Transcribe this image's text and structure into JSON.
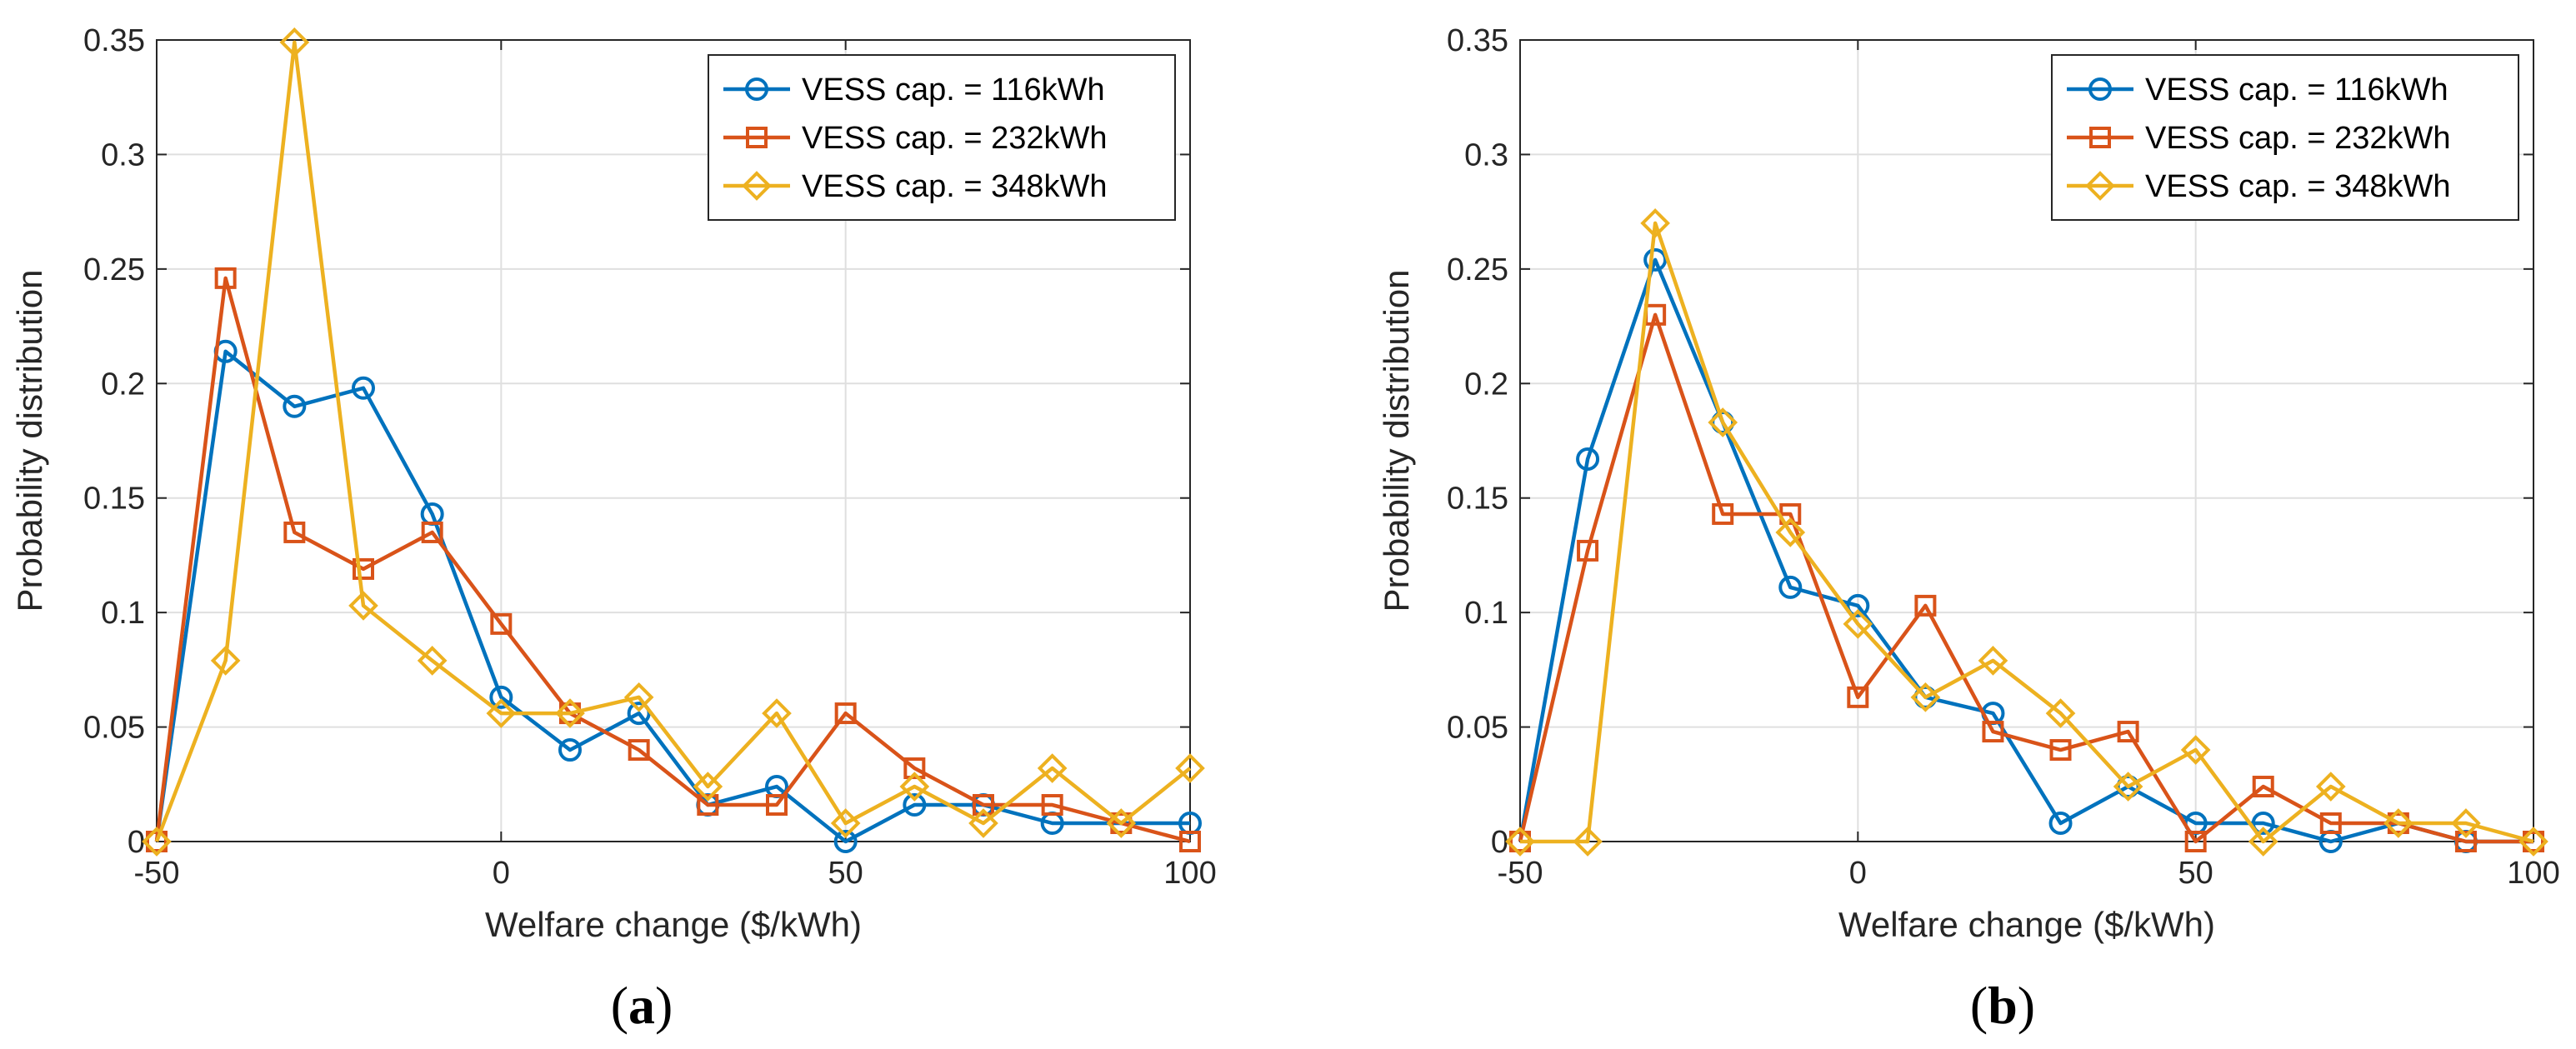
{
  "chart_data": [
    {
      "type": "line",
      "panel_label": "a",
      "title": "",
      "xlabel": "Welfare change ($/kWh)",
      "ylabel": "Probability distribution",
      "xlim": [
        -50,
        100
      ],
      "ylim": [
        0,
        0.35
      ],
      "xticks": [
        -50,
        0,
        50,
        100
      ],
      "xtick_labels": [
        "-50",
        "0",
        "50",
        "100"
      ],
      "yticks": [
        0,
        0.05,
        0.1,
        0.15,
        0.2,
        0.25,
        0.3,
        0.35
      ],
      "ytick_labels": [
        "0",
        "0.05",
        "0.1",
        "0.15",
        "0.2",
        "0.25",
        "0.3",
        "0.35"
      ],
      "grid": true,
      "legend_position": "top-right",
      "x": [
        -50,
        -40,
        -30,
        -20,
        -10,
        0,
        10,
        20,
        30,
        40,
        50,
        60,
        70,
        80,
        90,
        100
      ],
      "series": [
        {
          "name": "VESS cap. = 116kWh",
          "color": "#0072BD",
          "marker": "circle",
          "values": [
            0,
            0.214,
            0.19,
            0.198,
            0.143,
            0.063,
            0.04,
            0.056,
            0.016,
            0.024,
            0,
            0.016,
            0.016,
            0.008,
            0.008,
            0.008
          ]
        },
        {
          "name": "VESS cap. = 232kWh",
          "color": "#D95319",
          "marker": "square",
          "values": [
            0,
            0.246,
            0.135,
            0.119,
            0.135,
            0.095,
            0.056,
            0.04,
            0.016,
            0.016,
            0.056,
            0.032,
            0.016,
            0.016,
            0.008,
            0
          ]
        },
        {
          "name": "VESS cap. = 348kWh",
          "color": "#EDB120",
          "marker": "diamond",
          "values": [
            0,
            0.079,
            0.349,
            0.103,
            0.079,
            0.056,
            0.056,
            0.063,
            0.024,
            0.056,
            0.008,
            0.024,
            0.008,
            0.032,
            0.008,
            0.032
          ]
        }
      ]
    },
    {
      "type": "line",
      "panel_label": "b",
      "title": "",
      "xlabel": "Welfare change ($/kWh)",
      "ylabel": "Probability distribution",
      "xlim": [
        -50,
        100
      ],
      "ylim": [
        0,
        0.35
      ],
      "xticks": [
        -50,
        0,
        50,
        100
      ],
      "xtick_labels": [
        "-50",
        "0",
        "50",
        "100"
      ],
      "yticks": [
        0,
        0.05,
        0.1,
        0.15,
        0.2,
        0.25,
        0.3,
        0.35
      ],
      "ytick_labels": [
        "0",
        "0.05",
        "0.1",
        "0.15",
        "0.2",
        "0.25",
        "0.3",
        "0.35"
      ],
      "grid": true,
      "legend_position": "top-right",
      "x": [
        -50,
        -40,
        -30,
        -20,
        -10,
        0,
        10,
        20,
        30,
        40,
        50,
        60,
        70,
        80,
        90,
        100
      ],
      "series": [
        {
          "name": "VESS cap. = 116kWh",
          "color": "#0072BD",
          "marker": "circle",
          "values": [
            0,
            0.167,
            0.254,
            0.183,
            0.111,
            0.103,
            0.063,
            0.056,
            0.008,
            0.024,
            0.008,
            0.008,
            0,
            0.008,
            0,
            0
          ]
        },
        {
          "name": "VESS cap. = 232kWh",
          "color": "#D95319",
          "marker": "square",
          "values": [
            0,
            0.127,
            0.23,
            0.143,
            0.143,
            0.063,
            0.103,
            0.048,
            0.04,
            0.048,
            0,
            0.024,
            0.008,
            0.008,
            0,
            0
          ]
        },
        {
          "name": "VESS cap. = 348kWh",
          "color": "#EDB120",
          "marker": "diamond",
          "values": [
            0,
            0,
            0.27,
            0.183,
            0.135,
            0.095,
            0.063,
            0.079,
            0.056,
            0.024,
            0.04,
            0,
            0.024,
            0.008,
            0.008,
            0
          ]
        }
      ]
    }
  ]
}
